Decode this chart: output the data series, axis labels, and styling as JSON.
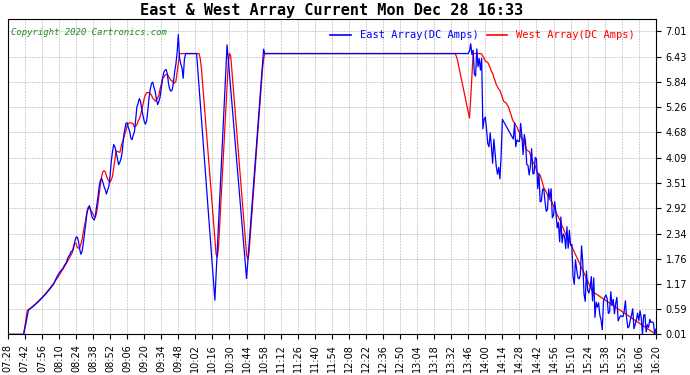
{
  "title": "East & West Array Current Mon Dec 28 16:33",
  "copyright": "Copyright 2020 Cartronics.com",
  "legend_east": "East Array(DC Amps)",
  "legend_west": "West Array(DC Amps)",
  "east_color": "#0000ff",
  "west_color": "#ff0000",
  "yticks": [
    0.01,
    0.59,
    1.17,
    1.76,
    2.34,
    2.92,
    3.51,
    4.09,
    4.68,
    5.26,
    5.84,
    6.43,
    7.01
  ],
  "ylim": [
    0.01,
    7.3
  ],
  "xtick_labels": [
    "07:28",
    "07:42",
    "07:56",
    "08:10",
    "08:24",
    "08:38",
    "08:52",
    "09:06",
    "09:20",
    "09:34",
    "09:48",
    "10:02",
    "10:16",
    "10:30",
    "10:44",
    "10:58",
    "11:12",
    "11:26",
    "11:40",
    "11:54",
    "12:08",
    "12:22",
    "12:36",
    "12:50",
    "13:04",
    "13:18",
    "13:32",
    "13:46",
    "14:00",
    "14:14",
    "14:28",
    "14:42",
    "14:56",
    "15:10",
    "15:24",
    "15:38",
    "15:52",
    "16:06",
    "16:20"
  ],
  "background_color": "#ffffff",
  "grid_color": "#999999",
  "title_fontsize": 11,
  "tick_fontsize": 7
}
